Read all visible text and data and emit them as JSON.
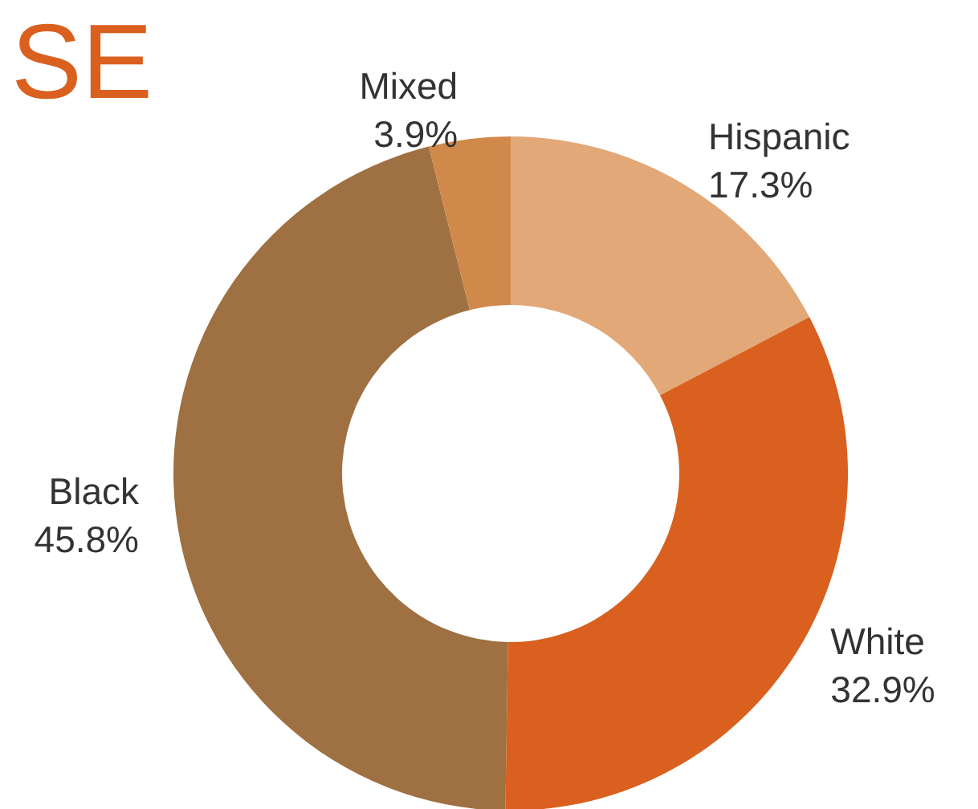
{
  "chart_data": {
    "type": "donut",
    "title": "SE",
    "categories": [
      "Hispanic",
      "White",
      "Black",
      "Mixed"
    ],
    "values": [
      17.3,
      32.9,
      45.8,
      3.9
    ],
    "colors": [
      "#e2a878",
      "#d9601f",
      "#9e7042",
      "#d0894b"
    ],
    "value_labels": [
      "17.3%",
      "32.9%",
      "45.8%",
      "3.9%"
    ]
  }
}
